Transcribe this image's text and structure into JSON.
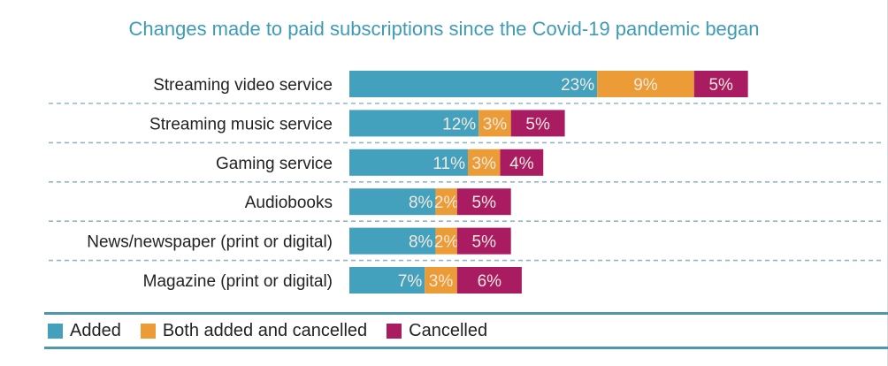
{
  "chart_data": {
    "type": "bar",
    "orientation": "horizontal",
    "stacked": true,
    "title": "Changes made to paid subscriptions since the Covid-19 pandemic began",
    "xlabel": "",
    "ylabel": "",
    "unit": "%",
    "categories": [
      "Streaming video service",
      "Streaming music service",
      "Gaming service",
      "Audiobooks",
      "News/newspaper (print or digital)",
      "Magazine (print or digital)"
    ],
    "series": [
      {
        "name": "Added",
        "color": "#44a1bd",
        "values": [
          23,
          12,
          11,
          8,
          8,
          7
        ]
      },
      {
        "name": "Both added and cancelled",
        "color": "#ec9c36",
        "values": [
          9,
          3,
          3,
          2,
          2,
          3
        ]
      },
      {
        "name": "Cancelled",
        "color": "#a91c62",
        "values": [
          5,
          5,
          4,
          5,
          5,
          6
        ]
      }
    ],
    "xlim": [
      0,
      37
    ],
    "grid": false,
    "separators": "dotted",
    "legend_position": "bottom"
  },
  "legend": {
    "items": [
      {
        "label": "Added",
        "color": "#44a1bd"
      },
      {
        "label": "Both added and cancelled",
        "color": "#ec9c36"
      },
      {
        "label": "Cancelled",
        "color": "#a91c62"
      }
    ]
  }
}
